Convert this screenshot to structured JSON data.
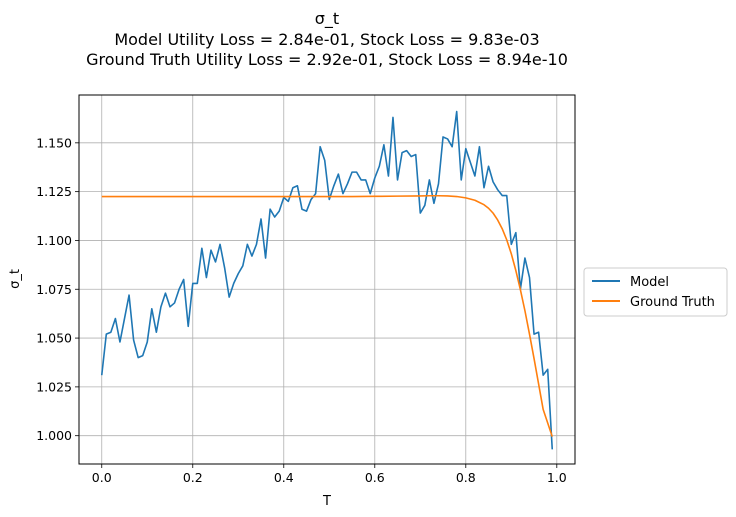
{
  "chart_data": {
    "type": "line",
    "title": "σ_t",
    "subtitle_lines": [
      "Model Utility Loss = 2.84e-01, Stock Loss = 9.83e-03",
      "Ground Truth Utility Loss = 2.92e-01, Stock Loss = 8.94e-10"
    ],
    "xlabel": "T",
    "ylabel": "σ_t",
    "xlim": [
      -0.05,
      1.04
    ],
    "ylim": [
      0.9855,
      1.1745
    ],
    "xticks": [
      0.0,
      0.2,
      0.4,
      0.6,
      0.8,
      1.0
    ],
    "xtick_labels": [
      "0.0",
      "0.2",
      "0.4",
      "0.6",
      "0.8",
      "1.0"
    ],
    "yticks": [
      1.0,
      1.025,
      1.05,
      1.075,
      1.1,
      1.125,
      1.15
    ],
    "ytick_labels": [
      "1.000",
      "1.025",
      "1.050",
      "1.075",
      "1.100",
      "1.125",
      "1.150"
    ],
    "grid": true,
    "legend_position": "right-outside",
    "series": [
      {
        "name": "Model",
        "color": "#1f77b4",
        "x": [
          0.0,
          0.01,
          0.02,
          0.03,
          0.04,
          0.05,
          0.06,
          0.07,
          0.08,
          0.09,
          0.1,
          0.11,
          0.12,
          0.13,
          0.14,
          0.15,
          0.16,
          0.17,
          0.18,
          0.19,
          0.2,
          0.21,
          0.22,
          0.23,
          0.24,
          0.25,
          0.26,
          0.27,
          0.28,
          0.29,
          0.3,
          0.31,
          0.32,
          0.33,
          0.34,
          0.35,
          0.36,
          0.37,
          0.38,
          0.39,
          0.4,
          0.41,
          0.42,
          0.43,
          0.44,
          0.45,
          0.46,
          0.47,
          0.48,
          0.49,
          0.5,
          0.51,
          0.52,
          0.53,
          0.54,
          0.55,
          0.56,
          0.57,
          0.58,
          0.59,
          0.6,
          0.61,
          0.62,
          0.63,
          0.64,
          0.65,
          0.66,
          0.67,
          0.68,
          0.69,
          0.7,
          0.71,
          0.72,
          0.73,
          0.74,
          0.75,
          0.76,
          0.77,
          0.78,
          0.79,
          0.8,
          0.81,
          0.82,
          0.83,
          0.84,
          0.85,
          0.86,
          0.87,
          0.88,
          0.89,
          0.9,
          0.91,
          0.92,
          0.93,
          0.94,
          0.95,
          0.96,
          0.97,
          0.98,
          0.99
        ],
        "values": [
          1.031,
          1.052,
          1.053,
          1.06,
          1.048,
          1.06,
          1.072,
          1.049,
          1.04,
          1.041,
          1.048,
          1.065,
          1.053,
          1.066,
          1.073,
          1.066,
          1.068,
          1.075,
          1.08,
          1.056,
          1.078,
          1.078,
          1.096,
          1.081,
          1.095,
          1.089,
          1.098,
          1.086,
          1.071,
          1.078,
          1.083,
          1.087,
          1.098,
          1.092,
          1.098,
          1.111,
          1.091,
          1.116,
          1.112,
          1.115,
          1.122,
          1.12,
          1.127,
          1.128,
          1.116,
          1.115,
          1.121,
          1.124,
          1.148,
          1.141,
          1.121,
          1.128,
          1.134,
          1.124,
          1.129,
          1.135,
          1.135,
          1.131,
          1.131,
          1.124,
          1.132,
          1.138,
          1.149,
          1.133,
          1.163,
          1.131,
          1.145,
          1.146,
          1.143,
          1.144,
          1.114,
          1.118,
          1.131,
          1.119,
          1.129,
          1.153,
          1.152,
          1.148,
          1.166,
          1.131,
          1.147,
          1.14,
          1.133,
          1.148,
          1.127,
          1.138,
          1.13,
          1.126,
          1.123,
          1.123,
          1.098,
          1.104,
          1.075,
          1.091,
          1.081,
          1.052,
          1.053,
          1.031,
          1.034,
          0.993
        ]
      },
      {
        "name": "Ground Truth",
        "color": "#ff7f0e",
        "x": [
          0.0,
          0.05,
          0.1,
          0.15,
          0.2,
          0.25,
          0.3,
          0.35,
          0.4,
          0.45,
          0.5,
          0.55,
          0.6,
          0.65,
          0.7,
          0.72,
          0.74,
          0.76,
          0.78,
          0.8,
          0.82,
          0.84,
          0.85,
          0.86,
          0.87,
          0.88,
          0.89,
          0.9,
          0.91,
          0.92,
          0.93,
          0.94,
          0.95,
          0.96,
          0.97,
          0.98,
          0.99
        ],
        "values": [
          1.1225,
          1.1225,
          1.1225,
          1.1225,
          1.1225,
          1.1225,
          1.1225,
          1.1225,
          1.1225,
          1.1225,
          1.1225,
          1.1225,
          1.1226,
          1.1227,
          1.1228,
          1.1229,
          1.1229,
          1.1228,
          1.1225,
          1.1218,
          1.1206,
          1.1183,
          1.1165,
          1.114,
          1.1105,
          1.106,
          1.1003,
          1.0932,
          1.0846,
          1.0748,
          1.064,
          1.052,
          1.0395,
          1.0265,
          1.0135,
          1.0065,
          0.9995
        ]
      }
    ]
  }
}
